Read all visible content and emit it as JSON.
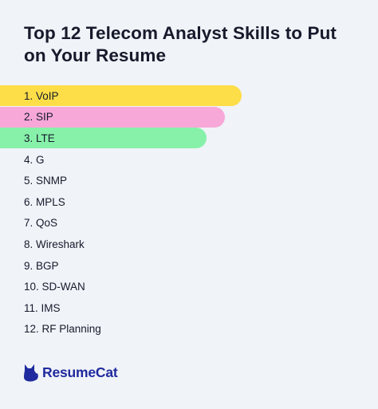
{
  "title": "Top 12 Telecom Analyst Skills to Put on Your Resume",
  "skills": [
    {
      "label": "1. VoIP",
      "color": "#fddd48",
      "bar_fraction": 0.64
    },
    {
      "label": "2. SIP",
      "color": "#f7a8d8",
      "bar_fraction": 0.594
    },
    {
      "label": "3. LTE",
      "color": "#87f1a9",
      "bar_fraction": 0.547
    },
    {
      "label": "4. G"
    },
    {
      "label": "5. SNMP"
    },
    {
      "label": "6. MPLS"
    },
    {
      "label": "7. QoS"
    },
    {
      "label": "8. Wireshark"
    },
    {
      "label": "9. BGP"
    },
    {
      "label": "10. SD-WAN"
    },
    {
      "label": "11. IMS"
    },
    {
      "label": "12. RF Planning"
    }
  ],
  "brand": {
    "name": "ResumeCat",
    "logo_icon": "cat-icon",
    "color": "#1f2a9e"
  }
}
